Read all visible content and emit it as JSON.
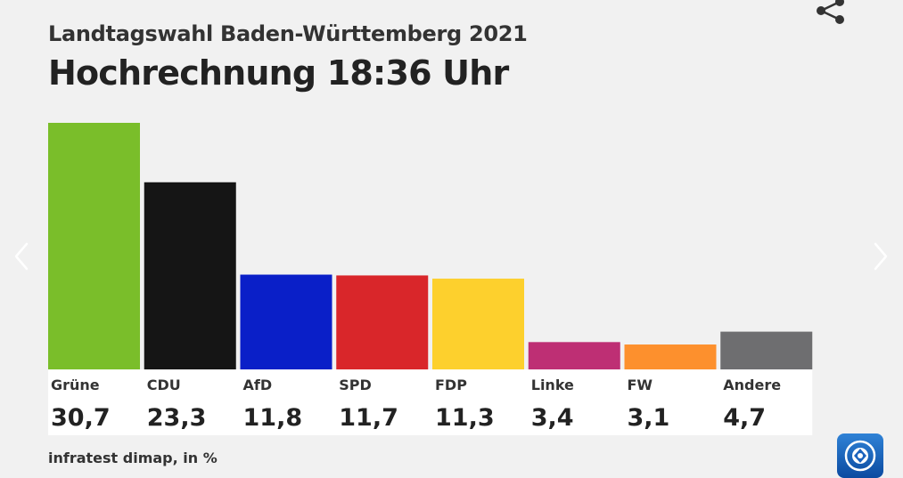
{
  "header": {
    "subtitle": "Landtagswahl Baden-Württemberg 2021",
    "title": "Hochrechnung 18:36 Uhr"
  },
  "source": "infratest dimap, in %",
  "icons": {
    "share": "share-icon",
    "prev": "chevron-left-icon",
    "next": "chevron-right-icon",
    "logo": "tagesschau-logo"
  },
  "chart_data": {
    "type": "bar",
    "categories": [
      "Grüne",
      "CDU",
      "AfD",
      "SPD",
      "FDP",
      "Linke",
      "FW",
      "Andere"
    ],
    "values": [
      30.7,
      23.3,
      11.8,
      11.7,
      11.3,
      3.4,
      3.1,
      4.7
    ],
    "value_labels": [
      "30,7",
      "23,3",
      "11,8",
      "11,7",
      "11,3",
      "3,4",
      "3,1",
      "4,7"
    ],
    "colors": [
      "#7abe2a",
      "#151515",
      "#0a1fc8",
      "#d9262a",
      "#fdd02d",
      "#be2f74",
      "#fd902d",
      "#6e6e70"
    ],
    "ylim": [
      0,
      30.7
    ],
    "grid": false,
    "legend": "none"
  }
}
